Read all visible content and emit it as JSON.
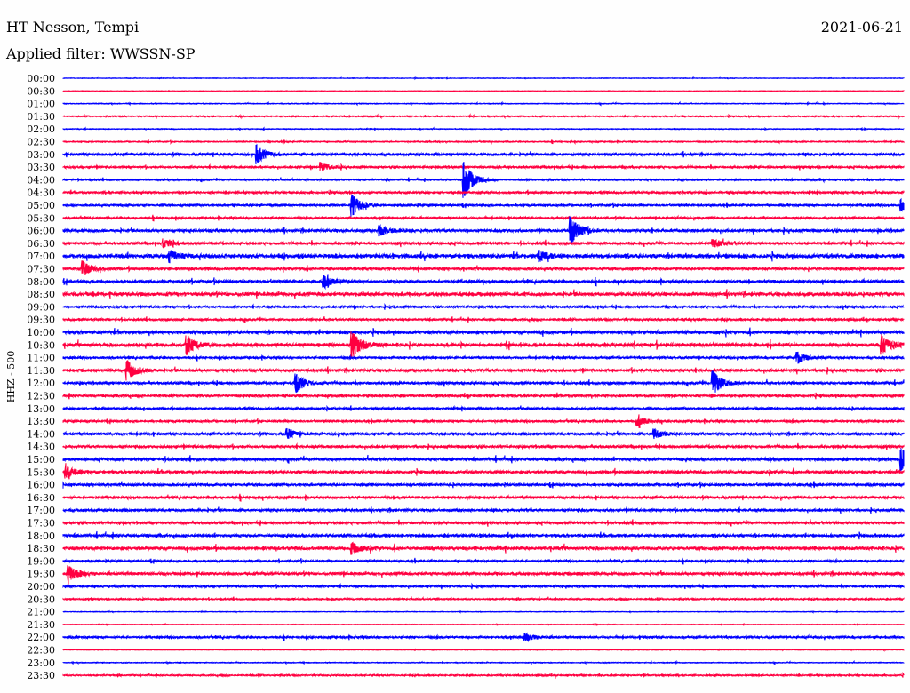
{
  "header": {
    "station": "HT Nesson, Tempi",
    "date": "2021-06-21",
    "filter": "Applied filter: WWSSN-SP"
  },
  "chart_data": {
    "type": "line",
    "title": "HT Nesson, Tempi",
    "ylabel": "HHZ - 500",
    "xlabel": "",
    "minutes_per_line": 30,
    "colors": [
      "#0000ff",
      "#ff0040"
    ],
    "row_labels": [
      "00:00",
      "00:30",
      "01:00",
      "01:30",
      "02:00",
      "02:30",
      "03:00",
      "03:30",
      "04:00",
      "04:30",
      "05:00",
      "05:30",
      "06:00",
      "06:30",
      "07:00",
      "07:30",
      "08:00",
      "08:30",
      "09:00",
      "09:30",
      "10:00",
      "10:30",
      "11:00",
      "11:30",
      "12:00",
      "12:30",
      "13:00",
      "13:30",
      "14:00",
      "14:30",
      "15:00",
      "15:30",
      "16:00",
      "16:30",
      "17:00",
      "17:30",
      "18:00",
      "18:30",
      "19:00",
      "19:30",
      "20:00",
      "20:30",
      "21:00",
      "21:30",
      "22:00",
      "22:30",
      "23:00",
      "23:30"
    ],
    "noise_level": [
      0.3,
      0.2,
      0.4,
      0.6,
      0.4,
      0.6,
      1.2,
      1.0,
      0.8,
      1.0,
      1.0,
      1.0,
      1.4,
      1.2,
      2.0,
      1.2,
      1.4,
      1.8,
      1.0,
      1.0,
      1.6,
      1.8,
      1.0,
      1.4,
      1.2,
      1.2,
      1.0,
      1.0,
      1.2,
      1.2,
      1.4,
      1.4,
      1.2,
      1.2,
      1.2,
      1.2,
      1.4,
      1.6,
      1.0,
      1.4,
      1.0,
      0.8,
      0.3,
      0.3,
      1.0,
      0.3,
      0.4,
      0.8
    ],
    "events": [
      {
        "row": "03:00",
        "minute": 6.9,
        "amplitude": 10
      },
      {
        "row": "03:30",
        "minute": 9.2,
        "amplitude": 5
      },
      {
        "row": "04:00",
        "minute": 14.3,
        "amplitude": 20
      },
      {
        "row": "05:00",
        "minute": 10.3,
        "amplitude": 12
      },
      {
        "row": "05:00",
        "minute": 29.9,
        "amplitude": 6
      },
      {
        "row": "06:00",
        "minute": 18.1,
        "amplitude": 15
      },
      {
        "row": "06:00",
        "minute": 11.3,
        "amplitude": 5
      },
      {
        "row": "06:30",
        "minute": 3.6,
        "amplitude": 4
      },
      {
        "row": "06:30",
        "minute": 23.2,
        "amplitude": 4
      },
      {
        "row": "07:00",
        "minute": 3.8,
        "amplitude": 6
      },
      {
        "row": "07:00",
        "minute": 17.0,
        "amplitude": 5
      },
      {
        "row": "07:30",
        "minute": 0.7,
        "amplitude": 8
      },
      {
        "row": "08:00",
        "minute": 9.3,
        "amplitude": 6
      },
      {
        "row": "10:30",
        "minute": 4.4,
        "amplitude": 10
      },
      {
        "row": "10:30",
        "minute": 10.3,
        "amplitude": 14
      },
      {
        "row": "10:30",
        "minute": 29.2,
        "amplitude": 10
      },
      {
        "row": "11:00",
        "minute": 26.2,
        "amplitude": 6
      },
      {
        "row": "11:30",
        "minute": 2.3,
        "amplitude": 10
      },
      {
        "row": "12:00",
        "minute": 8.3,
        "amplitude": 10
      },
      {
        "row": "12:00",
        "minute": 23.2,
        "amplitude": 13
      },
      {
        "row": "13:30",
        "minute": 20.5,
        "amplitude": 5
      },
      {
        "row": "14:00",
        "minute": 8.0,
        "amplitude": 5
      },
      {
        "row": "14:00",
        "minute": 21.1,
        "amplitude": 5
      },
      {
        "row": "15:00",
        "minute": 29.9,
        "amplitude": 12
      },
      {
        "row": "15:30",
        "minute": 0.1,
        "amplitude": 6
      },
      {
        "row": "18:30",
        "minute": 10.3,
        "amplitude": 6
      },
      {
        "row": "19:30",
        "minute": 0.2,
        "amplitude": 8
      },
      {
        "row": "22:00",
        "minute": 16.5,
        "amplitude": 4
      }
    ]
  }
}
